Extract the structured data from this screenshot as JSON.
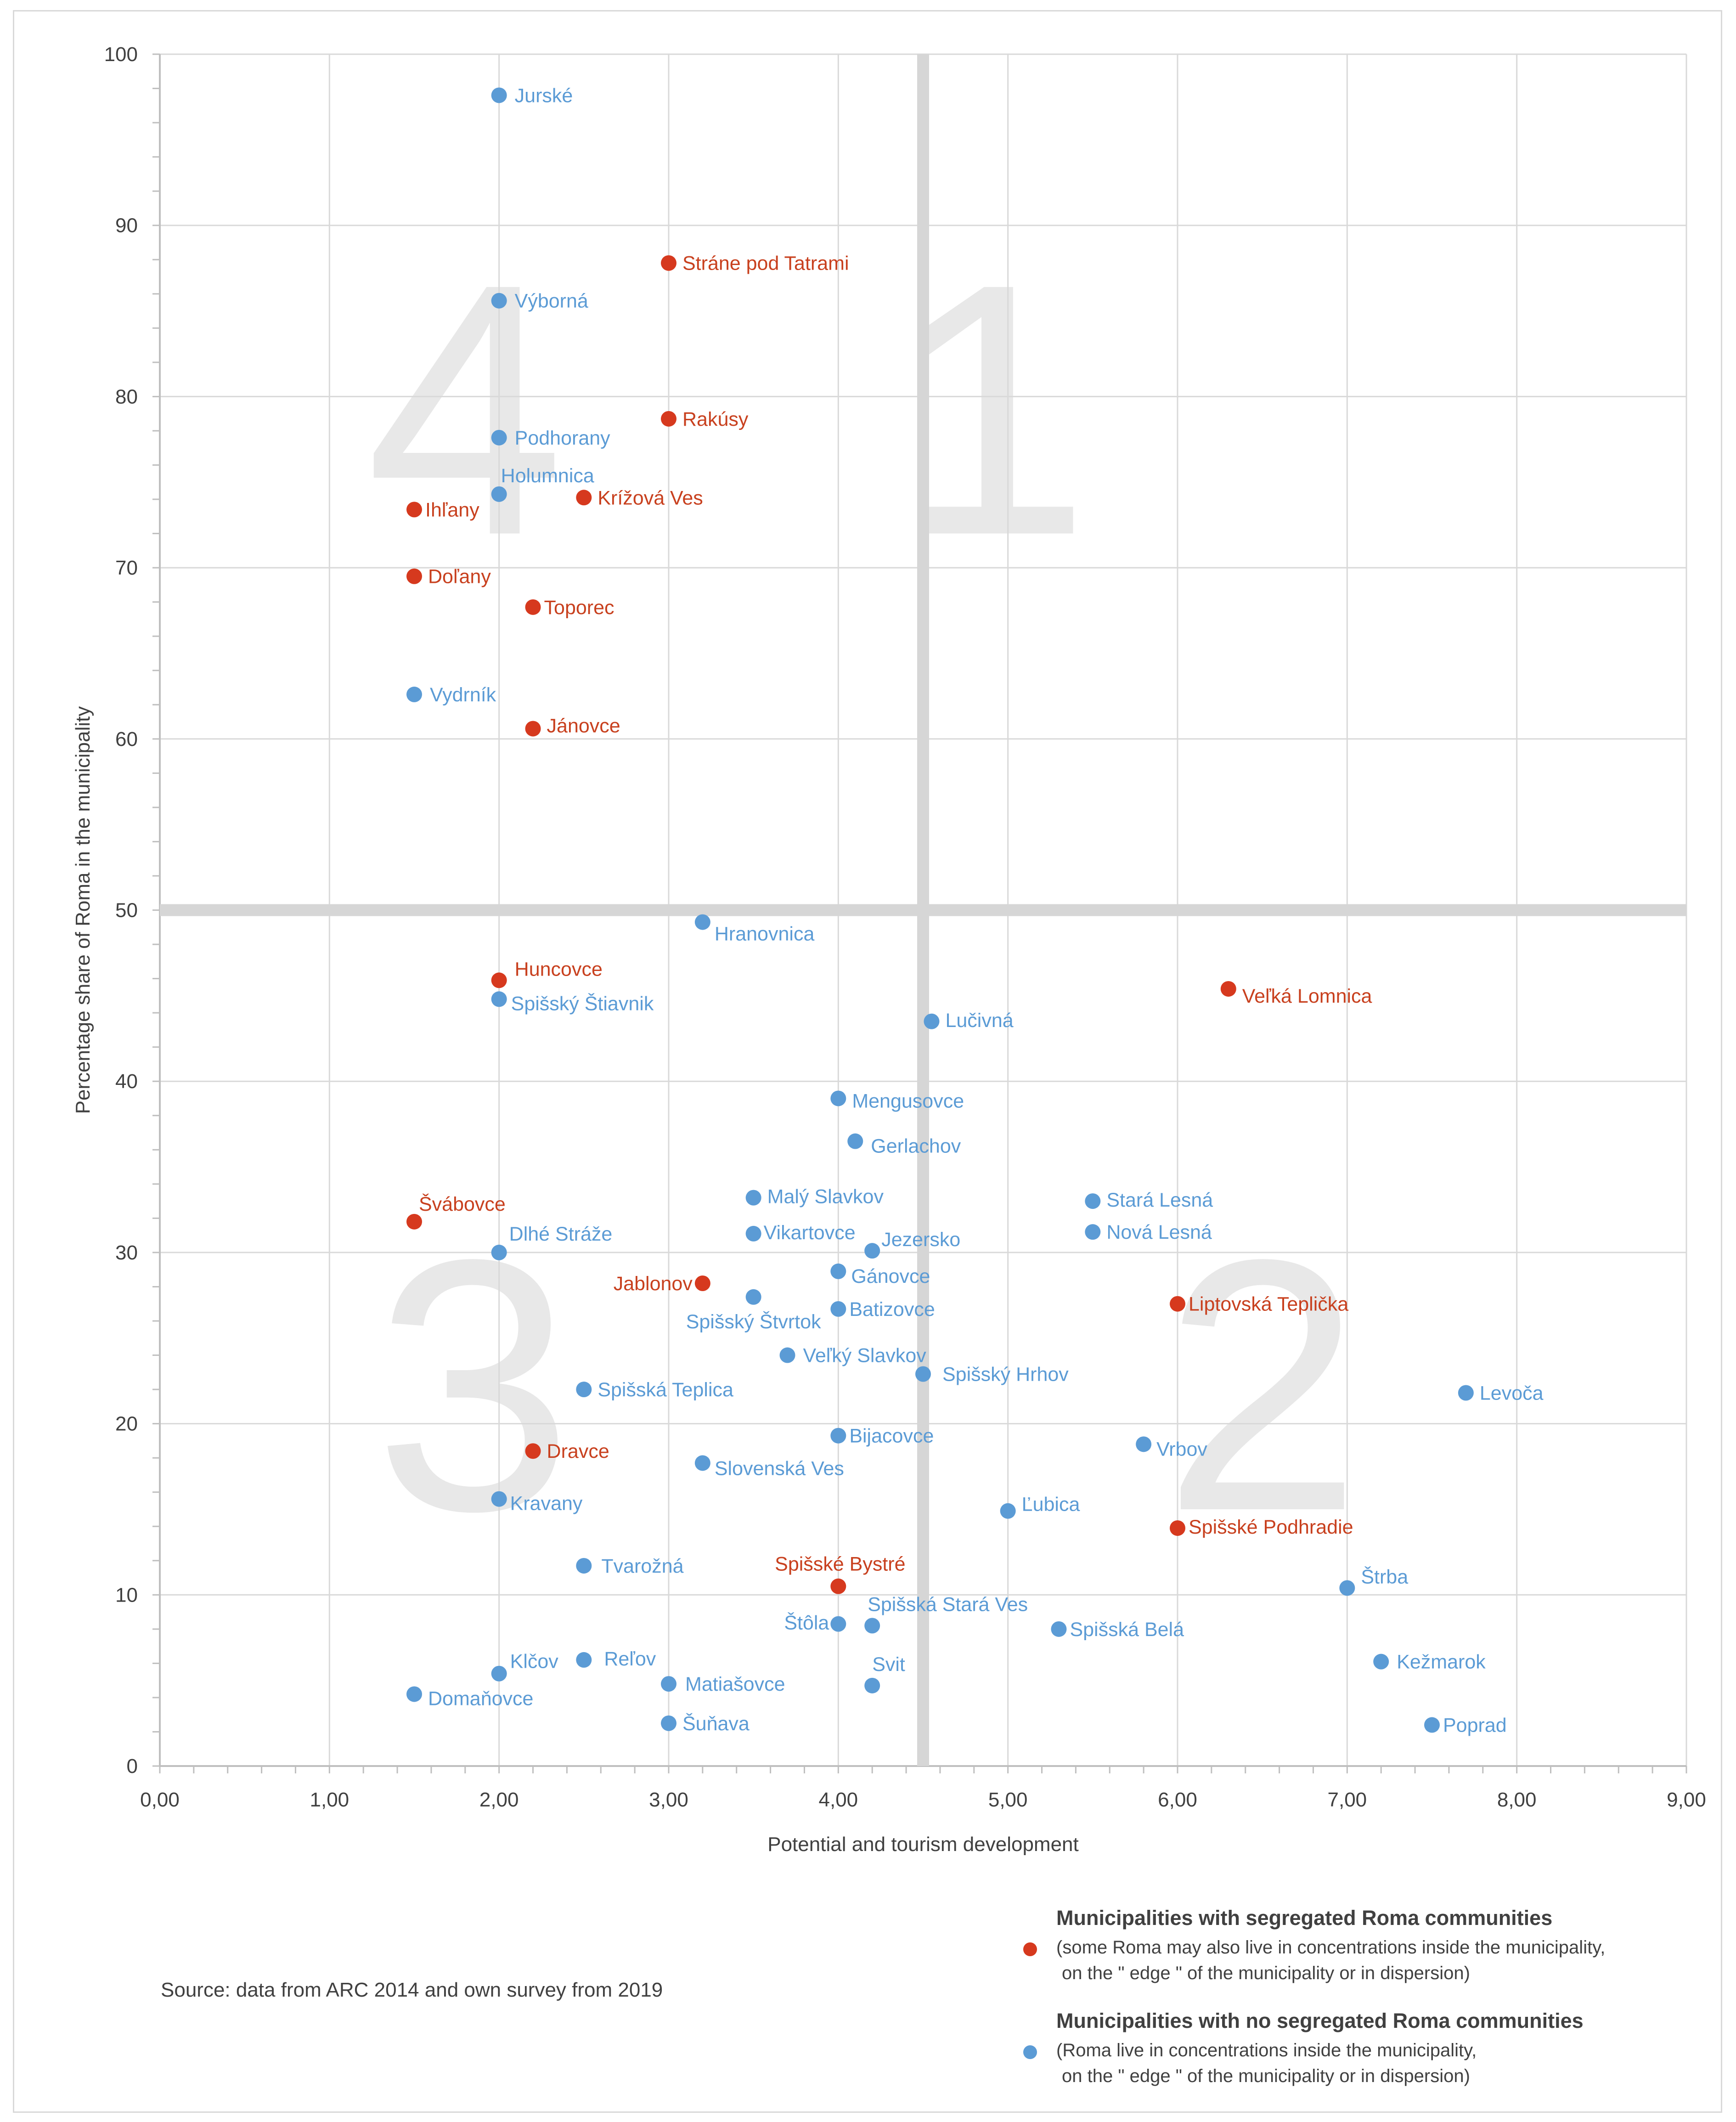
{
  "chart_data": {
    "type": "scatter",
    "title": "",
    "xlabel": "Potential and tourism development",
    "ylabel": "Percentage share of Roma in the municipality",
    "xlim": [
      0,
      9
    ],
    "ylim": [
      0,
      100
    ],
    "x_ticks": [
      "0,00",
      "1,00",
      "2,00",
      "3,00",
      "4,00",
      "5,00",
      "6,00",
      "7,00",
      "8,00",
      "9,00"
    ],
    "y_ticks": [
      "0",
      "10",
      "20",
      "30",
      "40",
      "50",
      "60",
      "70",
      "80",
      "90",
      "100"
    ],
    "grid": true,
    "divider_x": 4.5,
    "divider_y": 50,
    "quadrant_labels": [
      "1",
      "2",
      "3",
      "4"
    ],
    "colors": {
      "segregated": "#d6391e",
      "non_segregated": "#5b9bd5",
      "label_segregated": "#c8401e",
      "label_non_segregated": "#5b9bd5"
    },
    "series": [
      {
        "name": "Municipalities with segregated Roma communities",
        "color": "#d6391e",
        "points": [
          {
            "label": "Stráne pod Tatrami",
            "x": 3.0,
            "y": 87.8
          },
          {
            "label": "Rakúsy",
            "x": 3.0,
            "y": 78.7
          },
          {
            "label": "Ihľany",
            "x": 1.5,
            "y": 73.4
          },
          {
            "label": "Krížová Ves",
            "x": 2.5,
            "y": 74.1
          },
          {
            "label": "Doľany",
            "x": 1.5,
            "y": 69.5
          },
          {
            "label": "Toporec",
            "x": 2.2,
            "y": 67.7
          },
          {
            "label": "Jánovce",
            "x": 2.2,
            "y": 60.6
          },
          {
            "label": "Huncovce",
            "x": 2.0,
            "y": 45.9
          },
          {
            "label": "Veľká Lomnica",
            "x": 6.3,
            "y": 45.4
          },
          {
            "label": "Švábovce",
            "x": 1.5,
            "y": 31.8
          },
          {
            "label": "Jablonov",
            "x": 3.2,
            "y": 28.2
          },
          {
            "label": "Liptovská Teplička",
            "x": 6.0,
            "y": 27.0
          },
          {
            "label": "Dravce",
            "x": 2.2,
            "y": 18.4
          },
          {
            "label": "Spišské Podhradie",
            "x": 6.0,
            "y": 13.9
          },
          {
            "label": "Spišské Bystré",
            "x": 4.0,
            "y": 10.5
          }
        ]
      },
      {
        "name": "Municipalities with no segregated Roma communities",
        "color": "#5b9bd5",
        "points": [
          {
            "label": "Jurské",
            "x": 2.0,
            "y": 97.6
          },
          {
            "label": "Výborná",
            "x": 2.0,
            "y": 85.6
          },
          {
            "label": "Podhorany",
            "x": 2.0,
            "y": 77.6
          },
          {
            "label": "Holumnica",
            "x": 2.0,
            "y": 74.3
          },
          {
            "label": "Vydrník",
            "x": 1.5,
            "y": 62.6
          },
          {
            "label": "Hranovnica",
            "x": 3.2,
            "y": 49.3
          },
          {
            "label": "Spišský Štiavnik",
            "x": 2.0,
            "y": 44.8
          },
          {
            "label": "Lučivná",
            "x": 4.55,
            "y": 43.5
          },
          {
            "label": "Mengusovce",
            "x": 4.0,
            "y": 39.0
          },
          {
            "label": "Gerlachov",
            "x": 4.1,
            "y": 36.5
          },
          {
            "label": "Malý Slavkov",
            "x": 3.5,
            "y": 33.2
          },
          {
            "label": "Stará Lesná",
            "x": 5.5,
            "y": 33.0
          },
          {
            "label": "Nová Lesná",
            "x": 5.5,
            "y": 31.2
          },
          {
            "label": "Vikartovce",
            "x": 3.5,
            "y": 31.1
          },
          {
            "label": "Jezersko",
            "x": 4.2,
            "y": 30.1
          },
          {
            "label": "Dlhé Stráže",
            "x": 2.0,
            "y": 30.0
          },
          {
            "label": "Gánovce",
            "x": 4.0,
            "y": 28.9
          },
          {
            "label": "Spišský Štvrtok",
            "x": 3.5,
            "y": 27.4
          },
          {
            "label": "Batizovce",
            "x": 4.0,
            "y": 26.7
          },
          {
            "label": "Veľký Slavkov",
            "x": 3.7,
            "y": 24.0
          },
          {
            "label": "Spišský Hrhov",
            "x": 4.5,
            "y": 22.9
          },
          {
            "label": "Spišská Teplica",
            "x": 2.5,
            "y": 22.0
          },
          {
            "label": "Levoča",
            "x": 7.7,
            "y": 21.8
          },
          {
            "label": "Bijacovce",
            "x": 4.0,
            "y": 19.3
          },
          {
            "label": "Vrbov",
            "x": 5.8,
            "y": 18.8
          },
          {
            "label": "Slovenská Ves",
            "x": 3.2,
            "y": 17.7
          },
          {
            "label": "Kravany",
            "x": 2.0,
            "y": 15.6
          },
          {
            "label": "Ľubica",
            "x": 5.0,
            "y": 14.9
          },
          {
            "label": "Tvarožná",
            "x": 2.5,
            "y": 11.7
          },
          {
            "label": "Štrba",
            "x": 7.0,
            "y": 10.4
          },
          {
            "label": "Štôla",
            "x": 4.0,
            "y": 8.3
          },
          {
            "label": "Spišská Stará Ves",
            "x": 4.2,
            "y": 8.2
          },
          {
            "label": "Spišská Belá",
            "x": 5.3,
            "y": 8.0
          },
          {
            "label": "Reľov",
            "x": 2.5,
            "y": 6.2
          },
          {
            "label": "Kežmarok",
            "x": 7.2,
            "y": 6.1
          },
          {
            "label": "Klčov",
            "x": 2.0,
            "y": 5.4
          },
          {
            "label": "Matiašovce",
            "x": 3.0,
            "y": 4.8
          },
          {
            "label": "Svit",
            "x": 4.2,
            "y": 4.7
          },
          {
            "label": "Domaňovce",
            "x": 1.5,
            "y": 4.2
          },
          {
            "label": "Šuňava",
            "x": 3.0,
            "y": 2.5
          },
          {
            "label": "Poprad",
            "x": 7.5,
            "y": 2.4
          }
        ]
      }
    ]
  },
  "source": "Source: data from ARC 2014 and own survey from 2019",
  "legend": [
    {
      "title": "Municipalities with segregated Roma communities",
      "note": [
        "(some Roma may also live in concentrations inside the municipality,",
        "on the \" edge \" of the municipality or in dispersion)"
      ],
      "color": "#d6391e"
    },
    {
      "title": "Municipalities with no segregated Roma communities",
      "note": [
        "(Roma live in concentrations inside the municipality,",
        "on the \" edge \" of the municipality or in dispersion)"
      ],
      "color": "#5b9bd5"
    }
  ]
}
